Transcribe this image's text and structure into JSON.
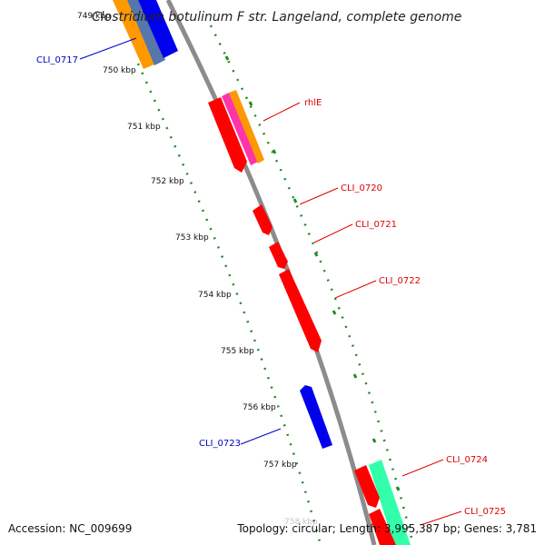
{
  "map": {
    "title": "Clostridium botulinum F str. Langeland, complete genome",
    "accession_text": "Accession: NC_009699",
    "summary_text": "Topology: circular; Length: 3,995,387 bp; Genes: 3,781"
  },
  "colors": {
    "backbone": "#8c8c8c",
    "tick": "#228b22",
    "forward_label": "#e00000",
    "reverse_label": "#0000c8",
    "gene_red": "#ff0000",
    "gene_blue": "#0000ee",
    "gene_orange": "#ff9900",
    "gene_magenta": "#ff33aa",
    "gene_teal": "#33ffaa"
  },
  "ticks": [
    {
      "label": "749 kbp"
    },
    {
      "label": "750 kbp"
    },
    {
      "label": "751 kbp"
    },
    {
      "label": "752 kbp"
    },
    {
      "label": "753 kbp"
    },
    {
      "label": "754 kbp"
    },
    {
      "label": "755 kbp"
    },
    {
      "label": "756 kbp"
    },
    {
      "label": "757 kbp"
    },
    {
      "label": "758 kbp"
    }
  ],
  "genes": [
    {
      "name": "CLI_0717",
      "strand": "reverse",
      "color": "#0000ee"
    },
    {
      "name": "rhlE",
      "strand": "forward",
      "color": "#ff0000"
    },
    {
      "name": "CLI_0720",
      "strand": "forward",
      "color": "#ff0000"
    },
    {
      "name": "CLI_0721",
      "strand": "forward",
      "color": "#ff0000"
    },
    {
      "name": "CLI_0722",
      "strand": "forward",
      "color": "#ff0000"
    },
    {
      "name": "CLI_0723",
      "strand": "reverse",
      "color": "#0000ee"
    },
    {
      "name": "CLI_0724",
      "strand": "forward",
      "color": "#ff0000"
    },
    {
      "name": "CLI_0725",
      "strand": "forward",
      "color": "#ff0000"
    }
  ]
}
